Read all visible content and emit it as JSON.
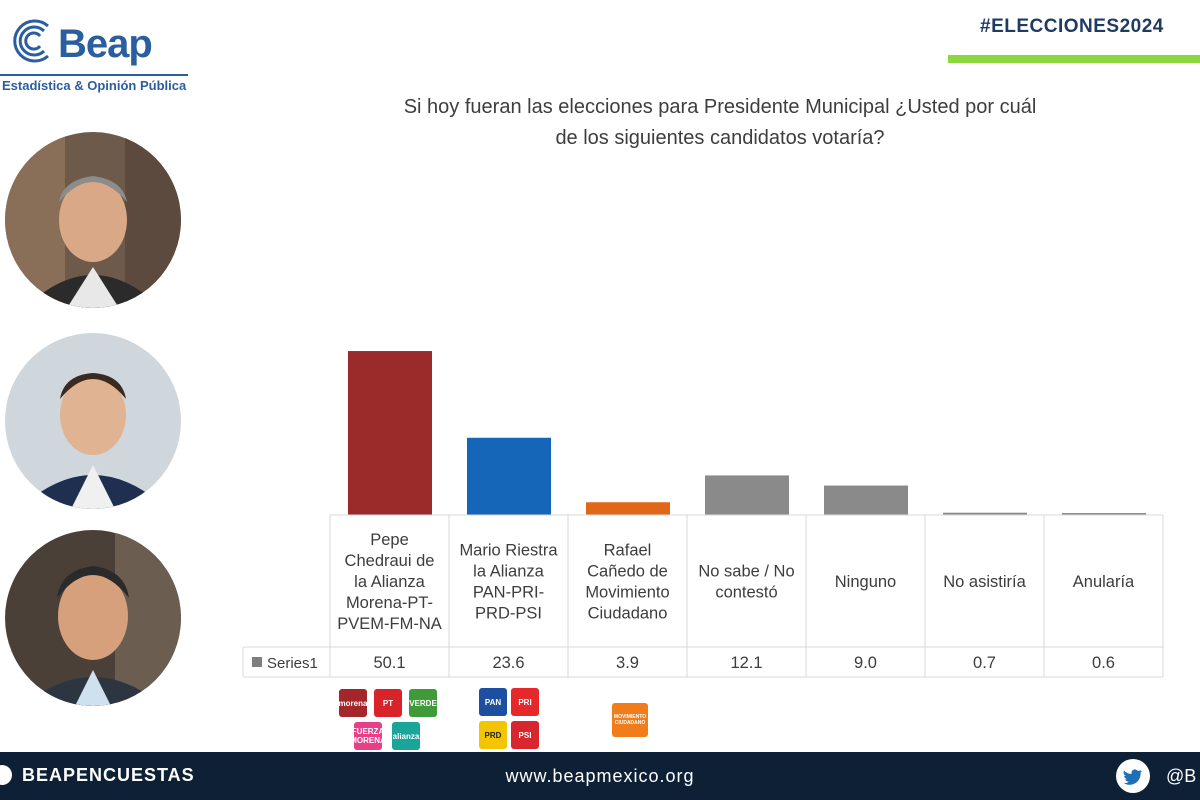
{
  "header": {
    "brand": "Beap",
    "tagline": "Estadística & Opinión Pública",
    "hashtag": "#ELECCIONES2024"
  },
  "question": {
    "line1": "Si hoy fueran las elecciones para Presidente Municipal ¿Usted por cuál",
    "line2": "de los siguientes candidatos votaría?"
  },
  "chart_data": {
    "type": "bar",
    "title": "Si hoy fueran las elecciones para Presidente Municipal ¿Usted por cuál de los siguientes candidatos votaría?",
    "categories": [
      [
        "Pepe",
        "Chedraui de",
        "la Alianza",
        "Morena-PT-",
        "PVEM-FM-NA"
      ],
      [
        "Mario Riestra",
        "la Alianza",
        "PAN-PRI-",
        "PRD-PSI"
      ],
      [
        "Rafael",
        "Cañedo de",
        "Movimiento",
        "Ciudadano"
      ],
      [
        "No sabe / No",
        "contestó"
      ],
      [
        "Ninguno"
      ],
      [
        "No asistiría"
      ],
      [
        "Anularía"
      ]
    ],
    "series": [
      {
        "name": "Series1",
        "values": [
          50.1,
          23.6,
          3.9,
          12.1,
          9.0,
          0.7,
          0.6
        ]
      }
    ],
    "value_labels": [
      "50.1",
      "23.6",
      "3.9",
      "12.1",
      "9.0",
      "0.7",
      "0.6"
    ],
    "bar_colors": [
      "#9b2a2a",
      "#1565b8",
      "#e0671a",
      "#8a8a8a",
      "#8a8a8a",
      "#8a8a8a",
      "#8a8a8a"
    ],
    "ylim": [
      0,
      55
    ],
    "legend_marker_color": "#7f7f7f"
  },
  "party_logos": {
    "group1": [
      "morena",
      "PT",
      "VERDE",
      "FUERZA MORENA",
      "alianza"
    ],
    "group2": [
      "PAN",
      "PRI",
      "PRD",
      "PSI"
    ],
    "group3": [
      "MOVIMIENTO CIUDADANO"
    ]
  },
  "footer": {
    "handle": "BEAPENCUESTAS",
    "website": "www.beapmexico.org",
    "twitter": "@B"
  },
  "colors": {
    "brand_blue": "#2b5e9e",
    "hashtag_green": "#8cd63f",
    "footer_bg": "#0e2036"
  }
}
